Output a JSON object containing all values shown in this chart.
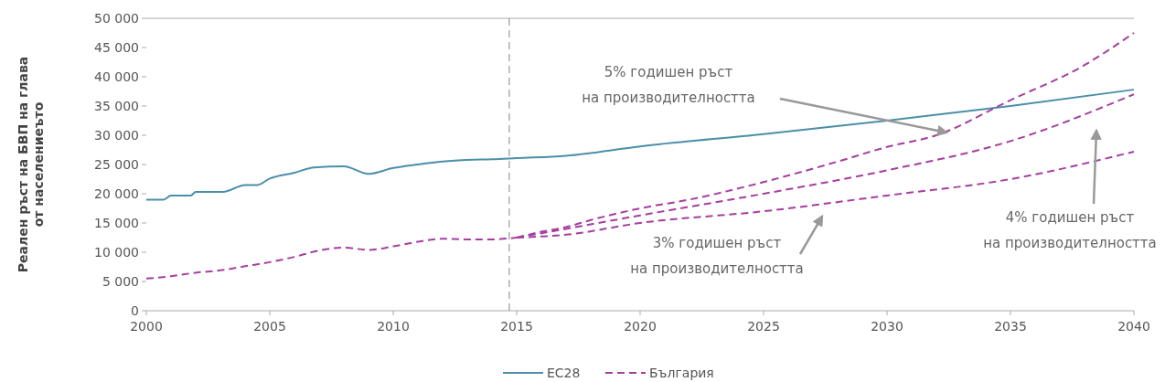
{
  "chart_data": {
    "type": "line",
    "ylabel": "Реален ръст на БВП на глава\nот населениеъто",
    "xlim": [
      2000,
      2040
    ],
    "xticks": [
      2000,
      2005,
      2010,
      2015,
      2020,
      2025,
      2030,
      2035,
      2040
    ],
    "ylim": [
      0,
      50000
    ],
    "yticks": [
      0,
      {
        "value": 5000,
        "label": "5 000"
      },
      {
        "value": 10000,
        "label": "10 000"
      },
      {
        "value": 15000,
        "label": "15 000"
      },
      {
        "value": 20000,
        "label": "20 000"
      },
      {
        "value": 25000,
        "label": "25 000"
      },
      {
        "value": 30000,
        "label": "30 000"
      },
      {
        "value": 35000,
        "label": "35 000"
      },
      {
        "value": 40000,
        "label": "40 000"
      },
      {
        "value": 45000,
        "label": "45 000"
      },
      {
        "value": 50000,
        "label": "50 000"
      }
    ],
    "grid": false,
    "legend": "bottom",
    "series": [
      {
        "name": "ЕС28",
        "color": "#4a8fa8",
        "line_style": "solid",
        "x": [
          2000,
          2000.7,
          2001,
          2001.8,
          2002,
          2003.1,
          2004,
          2004.5,
          2005,
          2006,
          2006.8,
          2008,
          2009,
          2010,
          2011,
          2012,
          2013,
          2014,
          2015,
          2017,
          2020,
          2025,
          2030,
          2035,
          2040
        ],
        "values": [
          19000,
          19000,
          19700,
          19700,
          20300,
          20300,
          21500,
          21500,
          22600,
          23600,
          24500,
          24700,
          23400,
          24400,
          25000,
          25500,
          25800,
          25900,
          26100,
          26500,
          28100,
          30200,
          32500,
          35000,
          37800
        ]
      },
      {
        "name": "България",
        "color": "#a63e9f",
        "line_style": "dashed",
        "x": [
          2000,
          2001,
          2002,
          2003,
          2004,
          2005,
          2006,
          2007,
          2008,
          2009,
          2010,
          2011,
          2012,
          2013,
          2014,
          2015
        ],
        "values": [
          5500,
          5900,
          6500,
          6900,
          7600,
          8300,
          9200,
          10300,
          10800,
          10400,
          11000,
          11800,
          12300,
          12200,
          12200,
          12500
        ]
      },
      {
        "color": "#a63e9f",
        "line_style": "dashed",
        "x": [
          2015,
          2017,
          2020,
          2025,
          2030,
          2035,
          2040
        ],
        "values": [
          12500,
          13000,
          15000,
          17000,
          19700,
          22500,
          27200
        ]
      },
      {
        "color": "#a63e9f",
        "line_style": "dashed",
        "x": [
          2015,
          2017,
          2020,
          2025,
          2030,
          2035,
          2040
        ],
        "values": [
          12500,
          14000,
          16300,
          20000,
          24000,
          29000,
          37000
        ]
      },
      {
        "color": "#a63e9f",
        "line_style": "dashed",
        "x": [
          2015,
          2016,
          2017,
          2018,
          2020,
          2022,
          2025,
          2028,
          2030,
          2032,
          2035,
          2038,
          2040
        ],
        "values": [
          12500,
          13500,
          14300,
          15500,
          17500,
          19000,
          22000,
          25500,
          28000,
          30000,
          36000,
          42000,
          47500
        ]
      }
    ],
    "ref_lines": [
      {
        "axis": "x",
        "value": 2014.7,
        "color": "#999999",
        "line_style": "dashed"
      }
    ],
    "annotations": [
      "5% годишен ръст\nна производителността",
      "3% годишен ръст\nна производителността",
      "4% годишен ръст\nна производителността"
    ]
  }
}
